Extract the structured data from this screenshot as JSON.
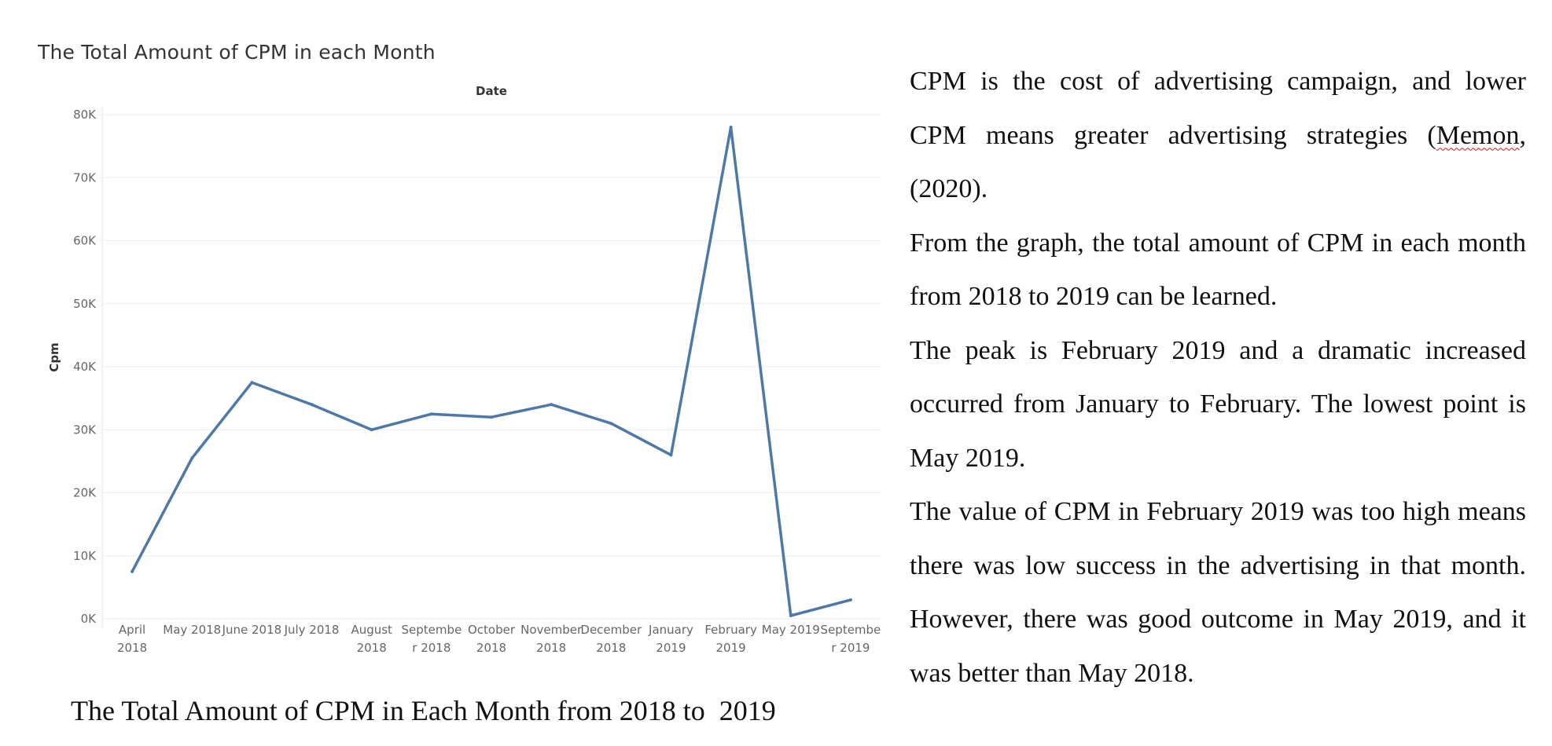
{
  "chart_data": {
    "type": "line",
    "title": "The Total Amount of CPM in each Month",
    "xlabel": "Date",
    "ylabel": "Cpm",
    "categories": [
      [
        "April",
        "2018"
      ],
      [
        "May 2018"
      ],
      [
        "June 2018"
      ],
      [
        "July 2018"
      ],
      [
        "August",
        "2018"
      ],
      [
        "Septembe",
        "r 2018"
      ],
      [
        "October",
        "2018"
      ],
      [
        "November",
        "2018"
      ],
      [
        "December",
        "2018"
      ],
      [
        "January",
        "2019"
      ],
      [
        "February",
        "2019"
      ],
      [
        "May 2019"
      ],
      [
        "Septembe",
        "r 2019"
      ]
    ],
    "series": [
      {
        "values": [
          7500,
          25500,
          37500,
          34000,
          30000,
          32500,
          32000,
          34000,
          31000,
          26000,
          78000,
          500,
          3000
        ],
        "color": "#4e79a7"
      }
    ],
    "ylim": [
      0,
      80000
    ],
    "yticks": [
      0,
      10000,
      20000,
      30000,
      40000,
      50000,
      60000,
      70000,
      80000
    ],
    "ytick_labels": [
      "0K",
      "10K",
      "20K",
      "30K",
      "40K",
      "50K",
      "60K",
      "70K",
      "80K"
    ],
    "grid": true,
    "gridline_color": "#eeeeee"
  },
  "caption": "The Total Amount of CPM in Each Month from 2018 to  2019",
  "text": {
    "p1_before": "CPM is the cost of advertising campaign, and lower CPM means greater advertising strategies (",
    "p1_squiggle": "Memon",
    "p1_after": ", (2020).",
    "p2": "From the graph, the total amount of CPM in each month from 2018 to 2019  can be learned.",
    "p3": "The peak is February 2019 and a dramatic increased occurred from January to February. The lowest point is May 2019.",
    "p4": "The value of CPM in February 2019 was too high means there was low success in the advertising in that month. However, there was good outcome in May 2019,  and it was better than May 2018."
  }
}
